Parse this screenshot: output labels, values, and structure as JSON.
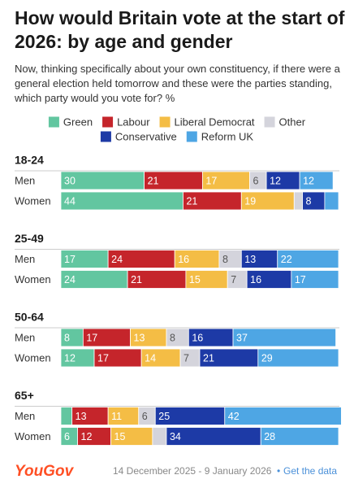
{
  "chart_data": {
    "type": "stacked-bar",
    "title": "How would Britain vote at the start of 2026: by age and gender",
    "subtitle": "Now, thinking specifically about your own constituency, if there were a general election held tomorrow and these were the parties standing, which party would you vote for? %",
    "groups": [
      "18-24",
      "25-49",
      "50-64",
      "65+"
    ],
    "categories": [
      "Men",
      "Women",
      "Men",
      "Women",
      "Men",
      "Women",
      "Men",
      "Women"
    ],
    "xlim": [
      0,
      100
    ],
    "series": [
      {
        "name": "Green",
        "color": "#62c6a0",
        "values": [
          30,
          44,
          17,
          24,
          8,
          12,
          4,
          6
        ],
        "value_labels": [
          "30",
          "44",
          "17",
          "24",
          "8",
          "12",
          null,
          "6"
        ]
      },
      {
        "name": "Labour",
        "color": "#c5252b",
        "values": [
          21,
          21,
          24,
          21,
          17,
          17,
          13,
          12
        ],
        "value_labels": [
          "21",
          "21",
          "24",
          "21",
          "17",
          "17",
          "13",
          "12"
        ]
      },
      {
        "name": "Liberal Democrat",
        "color": "#f4bd45",
        "values": [
          17,
          19,
          16,
          15,
          13,
          14,
          11,
          15
        ],
        "value_labels": [
          "17",
          "19",
          "16",
          "15",
          "13",
          "14",
          "11",
          "15"
        ]
      },
      {
        "name": "Other",
        "color": "#d4d4dc",
        "values": [
          6,
          3,
          8,
          7,
          8,
          7,
          6,
          5
        ],
        "value_labels": [
          "6",
          null,
          "8",
          "7",
          "8",
          "7",
          "6",
          null
        ]
      },
      {
        "name": "Conservative",
        "color": "#1d3aa6",
        "values": [
          12,
          8,
          13,
          16,
          16,
          21,
          25,
          34
        ],
        "value_labels": [
          "12",
          "8",
          "13",
          "16",
          "16",
          "21",
          "25",
          "34"
        ]
      },
      {
        "name": "Reform UK",
        "color": "#4ea6e4",
        "values": [
          12,
          5,
          22,
          17,
          37,
          29,
          42,
          28
        ],
        "value_labels": [
          "12",
          null,
          "22",
          "17",
          "37",
          "29",
          "42",
          "28"
        ]
      }
    ],
    "logo": "YouGov",
    "dates": "14 December 2025 - 9 January 2026",
    "separator": "•",
    "link": "Get the data"
  }
}
